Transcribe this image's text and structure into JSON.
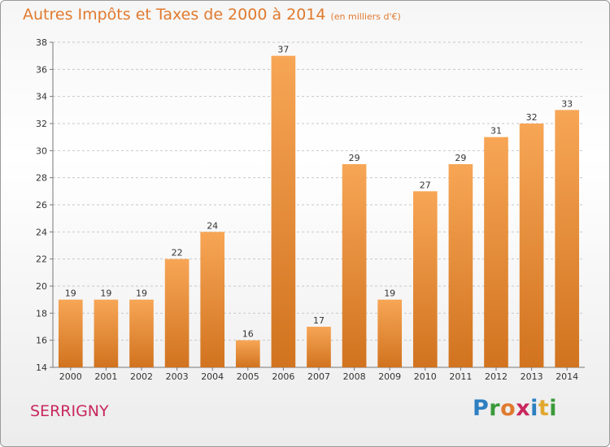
{
  "header": {
    "title": "Autres Impôts et Taxes de 2000 à 2014",
    "unit": "(en milliers d'€)"
  },
  "footer": {
    "town": "SERRIGNY",
    "logo": [
      "P",
      "r",
      "o",
      "x",
      "i",
      "t",
      "i"
    ],
    "logo_colors": [
      "#2d7fc1",
      "#3a9a3a",
      "#e07a2e",
      "#c8285f",
      "#2d7fc1",
      "#e0a82e",
      "#3a9a3a"
    ]
  },
  "colors": {
    "bar_top": "#f7a656",
    "bar_bottom": "#d1731f",
    "axis_text": "#333333",
    "grid": "#c8c8c8",
    "title": "#e07a2e"
  },
  "chart_data": {
    "type": "bar",
    "title": "Autres Impôts et Taxes de 2000 à 2014",
    "subtitle": "(en milliers d'€)",
    "xlabel": "",
    "ylabel": "",
    "categories": [
      "2000",
      "2001",
      "2002",
      "2003",
      "2004",
      "2005",
      "2006",
      "2007",
      "2008",
      "2009",
      "2010",
      "2011",
      "2012",
      "2013",
      "2014"
    ],
    "values": [
      19,
      19,
      19,
      22,
      24,
      16,
      37,
      17,
      29,
      19,
      27,
      29,
      31,
      32,
      33
    ],
    "ylim": [
      14,
      38
    ],
    "yticks": [
      14,
      16,
      18,
      20,
      22,
      24,
      26,
      28,
      30,
      32,
      34,
      36,
      38
    ],
    "grid": true,
    "grid_style": "dashed horizontal",
    "data_labels": true
  }
}
